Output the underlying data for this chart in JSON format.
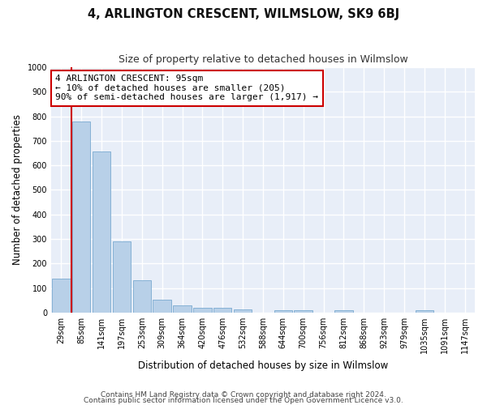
{
  "title": "4, ARLINGTON CRESCENT, WILMSLOW, SK9 6BJ",
  "subtitle": "Size of property relative to detached houses in Wilmslow",
  "xlabel": "Distribution of detached houses by size in Wilmslow",
  "ylabel": "Number of detached properties",
  "footnote1": "Contains HM Land Registry data © Crown copyright and database right 2024.",
  "footnote2": "Contains public sector information licensed under the Open Government Licence v3.0.",
  "annotation_line1": "4 ARLINGTON CRESCENT: 95sqm",
  "annotation_line2": "← 10% of detached houses are smaller (205)",
  "annotation_line3": "90% of semi-detached houses are larger (1,917) →",
  "bar_color": "#b8d0e8",
  "bar_edge_color": "#7aaad0",
  "marker_color": "#cc0000",
  "annotation_box_edge_color": "#cc0000",
  "annotation_box_face_color": "#ffffff",
  "fig_background_color": "#ffffff",
  "axes_background_color": "#e8eef8",
  "grid_color": "#ffffff",
  "categories": [
    "29sqm",
    "85sqm",
    "141sqm",
    "197sqm",
    "253sqm",
    "309sqm",
    "364sqm",
    "420sqm",
    "476sqm",
    "532sqm",
    "588sqm",
    "644sqm",
    "700sqm",
    "756sqm",
    "812sqm",
    "868sqm",
    "923sqm",
    "979sqm",
    "1035sqm",
    "1091sqm",
    "1147sqm"
  ],
  "values": [
    140,
    780,
    658,
    290,
    133,
    53,
    28,
    20,
    20,
    13,
    0,
    10,
    10,
    0,
    11,
    0,
    0,
    0,
    10,
    0,
    0
  ],
  "ylim": [
    0,
    1000
  ],
  "yticks": [
    0,
    100,
    200,
    300,
    400,
    500,
    600,
    700,
    800,
    900,
    1000
  ],
  "property_bin_index": 1,
  "red_line_x": 0.5,
  "title_fontsize": 10.5,
  "subtitle_fontsize": 9,
  "axis_label_fontsize": 8.5,
  "tick_fontsize": 7,
  "annotation_fontsize": 8,
  "footnote_fontsize": 6.5
}
